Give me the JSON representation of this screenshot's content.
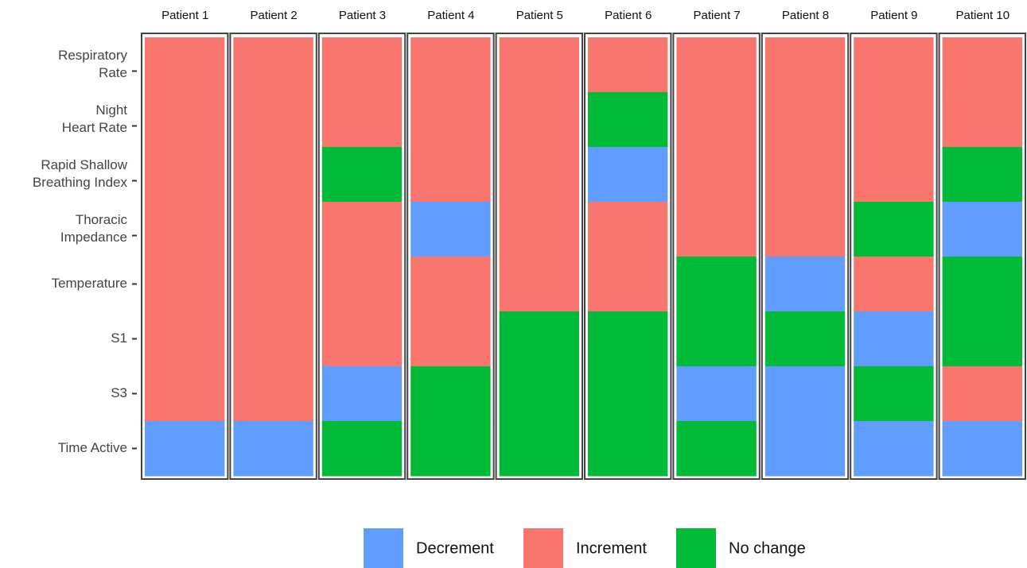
{
  "chart_data": {
    "type": "heatmap",
    "columns": [
      "Patient 1",
      "Patient 2",
      "Patient 3",
      "Patient 4",
      "Patient 5",
      "Patient 6",
      "Patient 7",
      "Patient 8",
      "Patient 9",
      "Patient 10"
    ],
    "rows": [
      [
        "Respiratory",
        "Rate"
      ],
      [
        "Night",
        "Heart Rate"
      ],
      [
        "Rapid Shallow",
        "Breathing Index"
      ],
      [
        "Thoracic",
        "Impedance"
      ],
      [
        "Temperature"
      ],
      [
        "S1"
      ],
      [
        "S3"
      ],
      [
        "Time Active"
      ]
    ],
    "levels": [
      {
        "name": "Decrement",
        "color": "#619CFF"
      },
      {
        "name": "Increment",
        "color": "#F8766D"
      },
      {
        "name": "No change",
        "color": "#00BA38"
      }
    ],
    "cells": [
      [
        "Increment",
        "Increment",
        "Increment",
        "Increment",
        "Increment",
        "Increment",
        "Increment",
        "Increment",
        "Increment",
        "Increment"
      ],
      [
        "Increment",
        "Increment",
        "Increment",
        "Increment",
        "Increment",
        "No change",
        "Increment",
        "Increment",
        "Increment",
        "Increment"
      ],
      [
        "Increment",
        "Increment",
        "No change",
        "Increment",
        "Increment",
        "Decrement",
        "Increment",
        "Increment",
        "Increment",
        "No change"
      ],
      [
        "Increment",
        "Increment",
        "Increment",
        "Decrement",
        "Increment",
        "Increment",
        "Increment",
        "Increment",
        "No change",
        "Decrement"
      ],
      [
        "Increment",
        "Increment",
        "Increment",
        "Increment",
        "Increment",
        "Increment",
        "No change",
        "Decrement",
        "Increment",
        "No change"
      ],
      [
        "Increment",
        "Increment",
        "Increment",
        "Increment",
        "No change",
        "No change",
        "No change",
        "No change",
        "Decrement",
        "No change"
      ],
      [
        "Increment",
        "Increment",
        "Decrement",
        "No change",
        "No change",
        "No change",
        "Decrement",
        "Decrement",
        "No change",
        "Increment"
      ],
      [
        "Decrement",
        "Decrement",
        "No change",
        "No change",
        "No change",
        "No change",
        "No change",
        "Decrement",
        "Decrement",
        "Decrement"
      ]
    ],
    "legend": "bottom"
  }
}
